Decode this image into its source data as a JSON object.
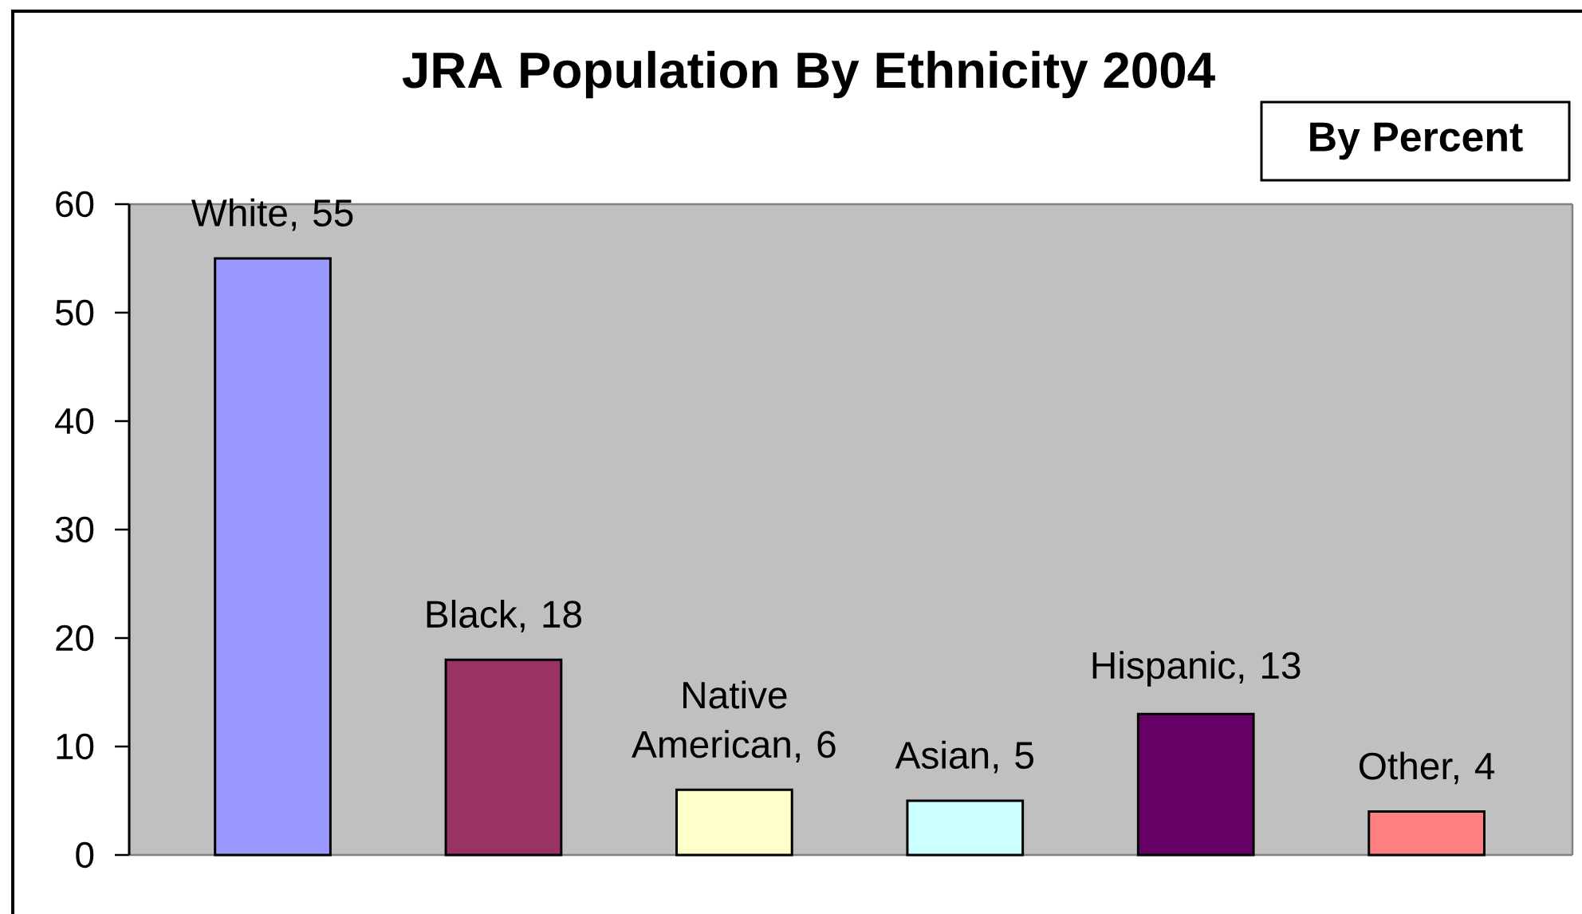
{
  "chart_data": {
    "type": "bar",
    "title": "JRA Population By Ethnicity 2004",
    "categories": [
      null,
      null,
      null,
      null,
      null,
      null
    ],
    "values": [
      55,
      18,
      6,
      5,
      13,
      4
    ],
    "colors": [
      "#9999ff",
      "#993366",
      "#ffffcc",
      "#ccffff",
      "#660066",
      "#ff8080"
    ],
    "value_labels": [
      "White, 55",
      "Black, 18",
      "Native American, 6",
      "Asian, 5",
      "Hispanic, 13",
      "Other, 4"
    ],
    "ylim": [
      0,
      60
    ],
    "yticks": [
      0,
      10,
      20,
      30,
      40,
      50,
      60
    ],
    "tick_labels": "y",
    "annotations": [
      "By Percent"
    ]
  }
}
